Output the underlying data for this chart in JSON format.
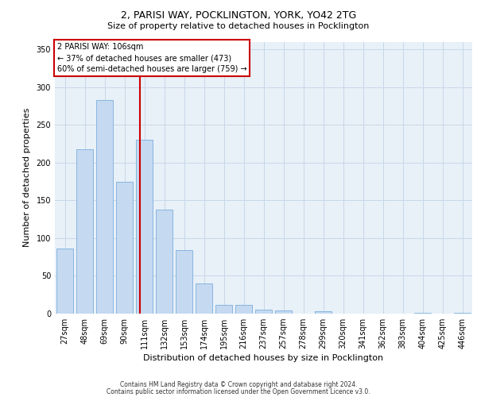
{
  "title_line1": "2, PARISI WAY, POCKLINGTON, YORK, YO42 2TG",
  "title_line2": "Size of property relative to detached houses in Pocklington",
  "xlabel": "Distribution of detached houses by size in Pocklington",
  "ylabel": "Number of detached properties",
  "footnote1": "Contains HM Land Registry data © Crown copyright and database right 2024.",
  "footnote2": "Contains public sector information licensed under the Open Government Licence v3.0.",
  "annotation_line1": "2 PARISI WAY: 106sqm",
  "annotation_line2": "← 37% of detached houses are smaller (473)",
  "annotation_line3": "60% of semi-detached houses are larger (759) →",
  "bar_labels": [
    "27sqm",
    "48sqm",
    "69sqm",
    "90sqm",
    "111sqm",
    "132sqm",
    "153sqm",
    "174sqm",
    "195sqm",
    "216sqm",
    "237sqm",
    "257sqm",
    "278sqm",
    "299sqm",
    "320sqm",
    "341sqm",
    "362sqm",
    "383sqm",
    "404sqm",
    "425sqm",
    "446sqm"
  ],
  "bar_values": [
    86,
    218,
    283,
    175,
    230,
    138,
    84,
    40,
    12,
    12,
    5,
    4,
    0,
    3,
    0,
    0,
    0,
    0,
    1,
    0,
    1
  ],
  "bar_color": "#c5d9f0",
  "bar_edge_color": "#7aafdd",
  "grid_color": "#c8d8e8",
  "background_color": "#e8f0f8",
  "vline_color": "#cc0000",
  "vline_pos": 3.76,
  "ylim": [
    0,
    360
  ],
  "yticks": [
    0,
    50,
    100,
    150,
    200,
    250,
    300,
    350
  ],
  "box_color": "#cc0000",
  "fig_bg": "#ffffff",
  "title1_fontsize": 9,
  "title2_fontsize": 8,
  "ylabel_fontsize": 8,
  "xlabel_fontsize": 8,
  "tick_fontsize": 7,
  "annot_fontsize": 7,
  "footnote_fontsize": 5.5
}
